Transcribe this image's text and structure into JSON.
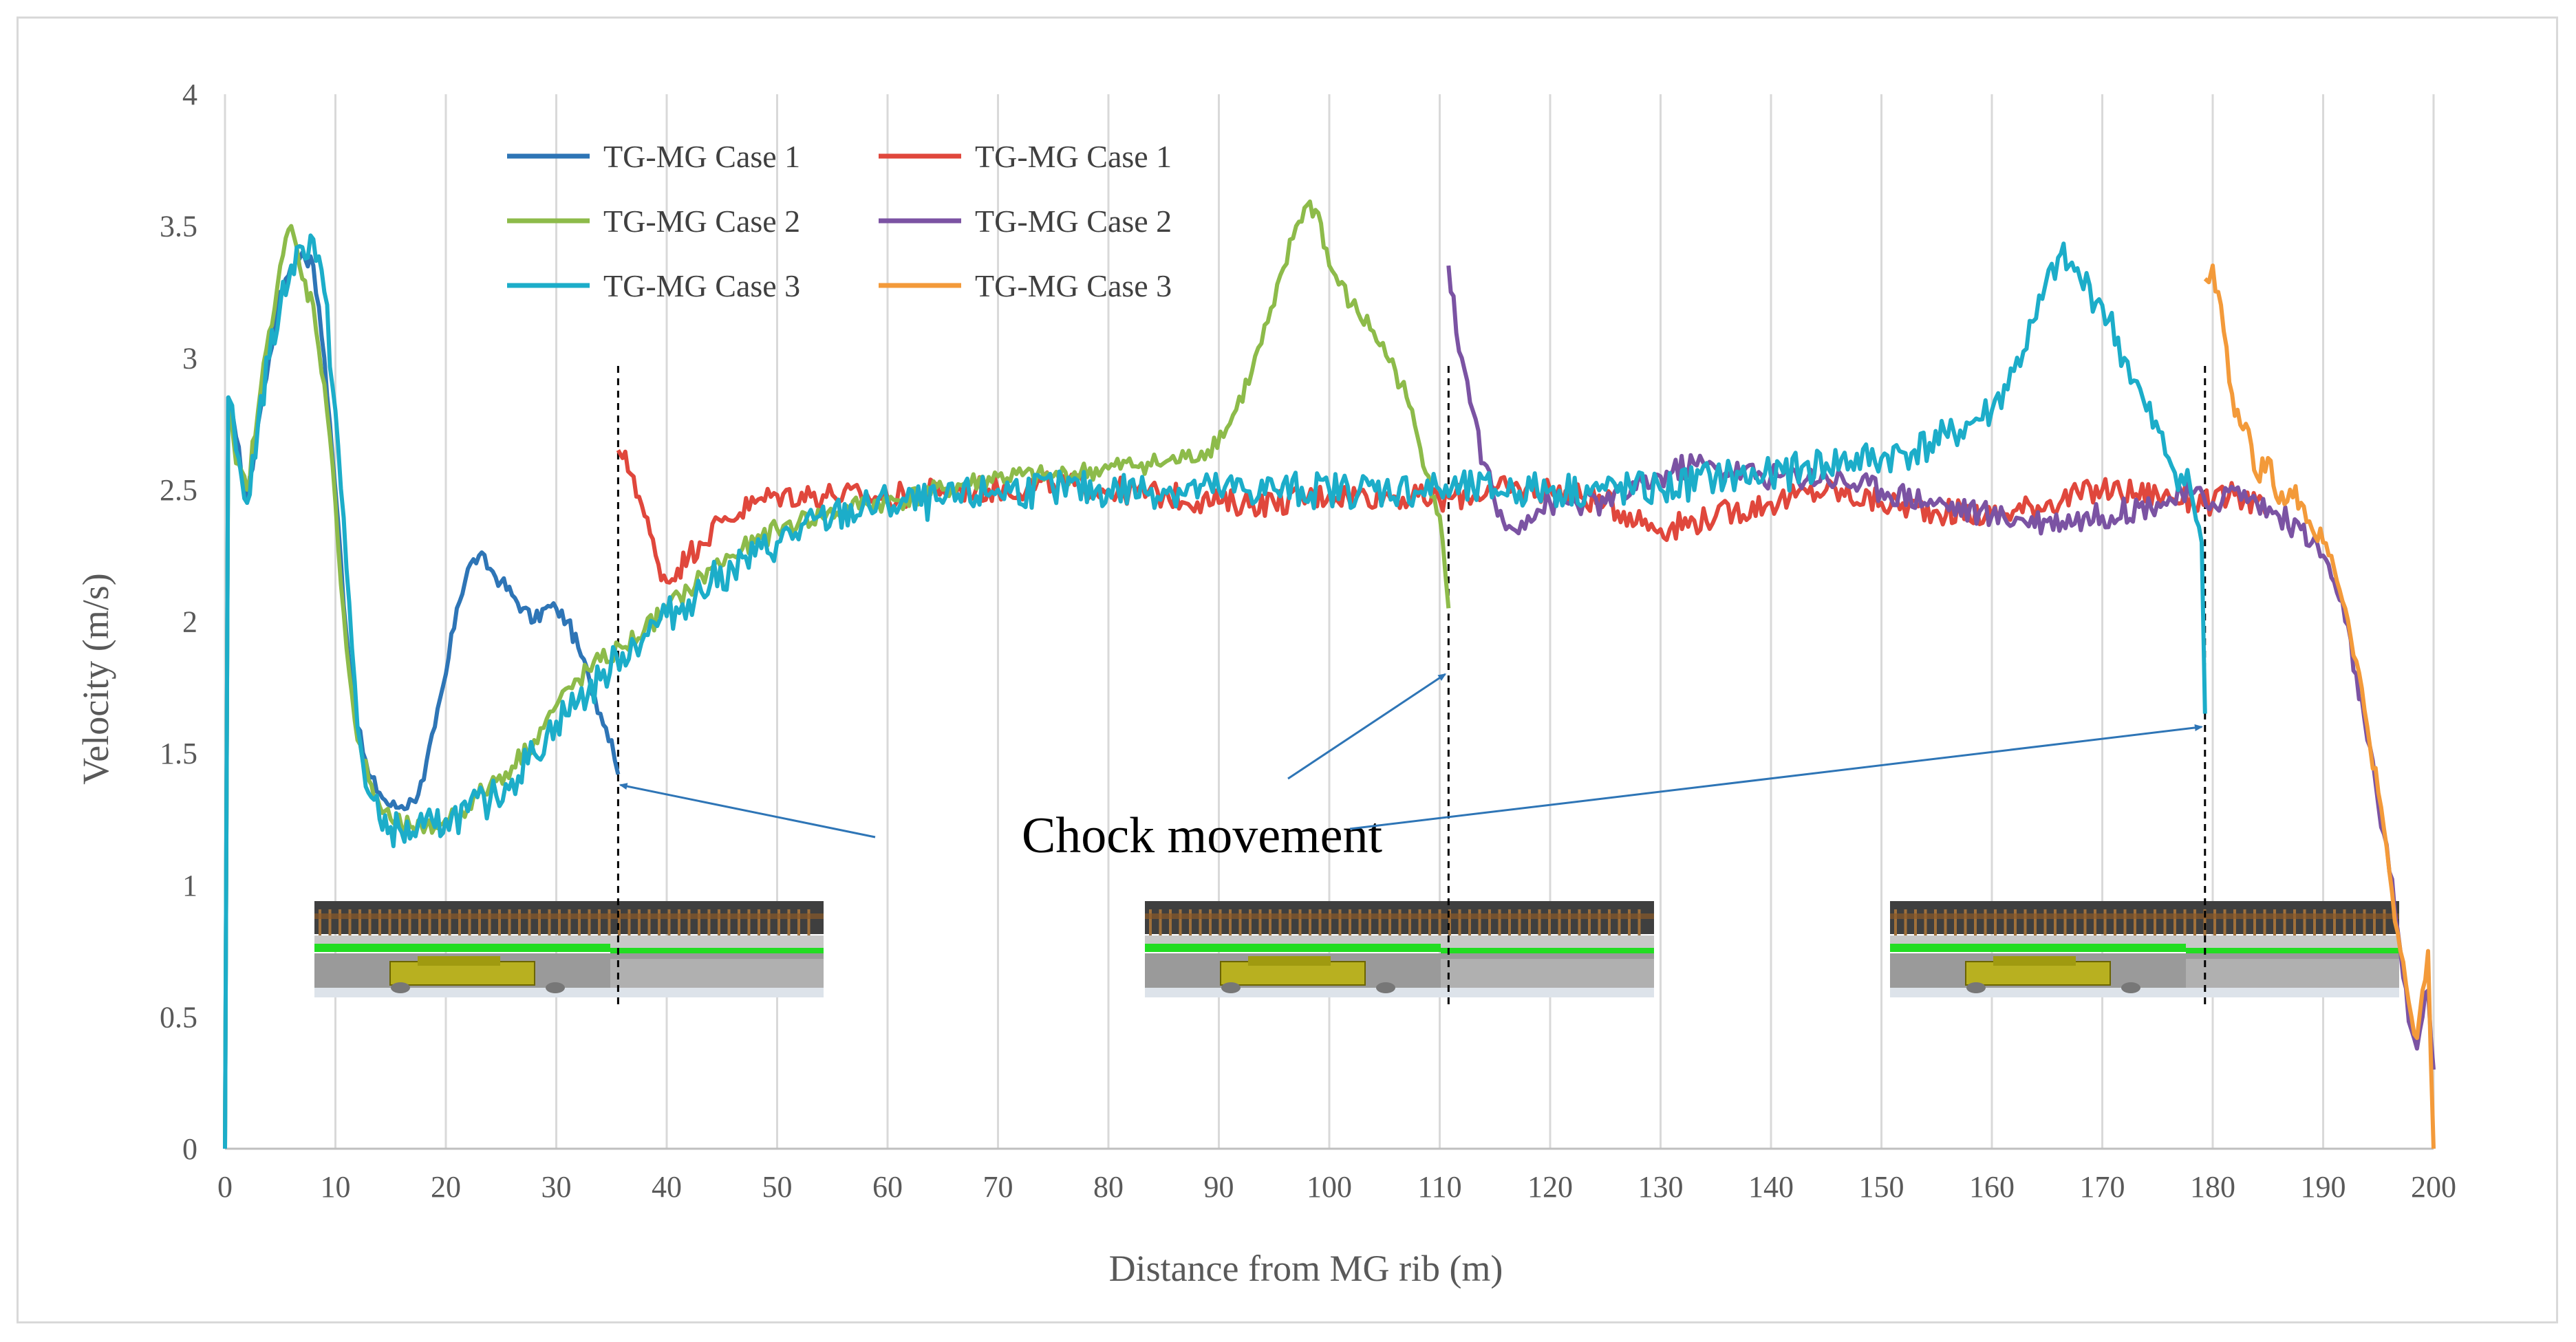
{
  "chart_data": {
    "type": "line",
    "title": "",
    "xlabel": "Distance from MG rib (m)",
    "ylabel": "Velocity (m/s)",
    "xlim": [
      0,
      200
    ],
    "ylim": [
      0,
      4
    ],
    "x_ticks": [
      "0",
      "10",
      "20",
      "30",
      "40",
      "50",
      "60",
      "70",
      "80",
      "90",
      "100",
      "110",
      "120",
      "130",
      "140",
      "150",
      "160",
      "170",
      "180",
      "190",
      "200"
    ],
    "y_ticks": [
      "0",
      "0.5",
      "1",
      "1.5",
      "2",
      "2.5",
      "3",
      "3.5",
      "4"
    ],
    "grid": "vertical",
    "legend_position": "top-left",
    "series": [
      {
        "name": "TG-MG Case 1",
        "color": "#2e75b6",
        "noise": 0.03,
        "points": [
          [
            0,
            0
          ],
          [
            0.3,
            2.85
          ],
          [
            1,
            2.7
          ],
          [
            2,
            2.45
          ],
          [
            3,
            2.75
          ],
          [
            4,
            3.0
          ],
          [
            5,
            3.25
          ],
          [
            6,
            3.35
          ],
          [
            7,
            3.4
          ],
          [
            8,
            3.35
          ],
          [
            9,
            3.0
          ],
          [
            10,
            2.5
          ],
          [
            11,
            1.95
          ],
          [
            12,
            1.6
          ],
          [
            13,
            1.42
          ],
          [
            14,
            1.35
          ],
          [
            15,
            1.3
          ],
          [
            16,
            1.3
          ],
          [
            17,
            1.32
          ],
          [
            18,
            1.4
          ],
          [
            19,
            1.6
          ],
          [
            20,
            1.8
          ],
          [
            21,
            2.05
          ],
          [
            22,
            2.2
          ],
          [
            23,
            2.25
          ],
          [
            24,
            2.2
          ],
          [
            25,
            2.15
          ],
          [
            26,
            2.1
          ],
          [
            27,
            2.05
          ],
          [
            28,
            2.0
          ],
          [
            29,
            2.05
          ],
          [
            30,
            2.05
          ],
          [
            31,
            2.0
          ],
          [
            32,
            1.9
          ],
          [
            33,
            1.78
          ],
          [
            34,
            1.65
          ],
          [
            35,
            1.55
          ],
          [
            35.6,
            1.42
          ]
        ]
      },
      {
        "name": "TG-MG Case 1",
        "color": "#e0473c",
        "noise": 0.05,
        "points": [
          [
            35.6,
            2.65
          ],
          [
            36,
            2.62
          ],
          [
            37,
            2.55
          ],
          [
            38,
            2.4
          ],
          [
            39,
            2.25
          ],
          [
            40,
            2.15
          ],
          [
            41,
            2.2
          ],
          [
            42,
            2.25
          ],
          [
            43,
            2.3
          ],
          [
            45,
            2.38
          ],
          [
            48,
            2.45
          ],
          [
            50,
            2.48
          ],
          [
            55,
            2.48
          ],
          [
            60,
            2.47
          ],
          [
            65,
            2.5
          ],
          [
            70,
            2.5
          ],
          [
            75,
            2.52
          ],
          [
            80,
            2.5
          ],
          [
            85,
            2.48
          ],
          [
            90,
            2.45
          ],
          [
            95,
            2.45
          ],
          [
            100,
            2.48
          ],
          [
            105,
            2.48
          ],
          [
            110,
            2.46
          ],
          [
            115,
            2.5
          ],
          [
            120,
            2.5
          ],
          [
            125,
            2.45
          ],
          [
            130,
            2.35
          ],
          [
            135,
            2.4
          ],
          [
            140,
            2.45
          ],
          [
            145,
            2.5
          ],
          [
            150,
            2.45
          ],
          [
            155,
            2.42
          ],
          [
            160,
            2.4
          ],
          [
            165,
            2.45
          ],
          [
            170,
            2.5
          ],
          [
            175,
            2.48
          ],
          [
            180,
            2.45
          ],
          [
            182,
            2.48
          ],
          [
            184,
            2.45
          ],
          [
            185,
            2.4
          ]
        ]
      },
      {
        "name": "TG-MG Case 2",
        "color": "#8dbb4a",
        "noise": 0.04,
        "points": [
          [
            0,
            0
          ],
          [
            0.3,
            2.8
          ],
          [
            1,
            2.6
          ],
          [
            2,
            2.5
          ],
          [
            3,
            2.8
          ],
          [
            4,
            3.1
          ],
          [
            5,
            3.35
          ],
          [
            6,
            3.5
          ],
          [
            7,
            3.3
          ],
          [
            8,
            3.2
          ],
          [
            9,
            2.9
          ],
          [
            10,
            2.45
          ],
          [
            11,
            1.9
          ],
          [
            12,
            1.55
          ],
          [
            13,
            1.4
          ],
          [
            14,
            1.3
          ],
          [
            15,
            1.25
          ],
          [
            16,
            1.22
          ],
          [
            17,
            1.22
          ],
          [
            18,
            1.2
          ],
          [
            19,
            1.22
          ],
          [
            20,
            1.25
          ],
          [
            22,
            1.3
          ],
          [
            24,
            1.38
          ],
          [
            26,
            1.45
          ],
          [
            28,
            1.55
          ],
          [
            30,
            1.68
          ],
          [
            32,
            1.78
          ],
          [
            34,
            1.85
          ],
          [
            36,
            1.9
          ],
          [
            38,
            1.97
          ],
          [
            40,
            2.05
          ],
          [
            42,
            2.12
          ],
          [
            44,
            2.2
          ],
          [
            46,
            2.25
          ],
          [
            48,
            2.3
          ],
          [
            50,
            2.35
          ],
          [
            52,
            2.38
          ],
          [
            54,
            2.4
          ],
          [
            56,
            2.42
          ],
          [
            58,
            2.45
          ],
          [
            60,
            2.45
          ],
          [
            65,
            2.5
          ],
          [
            70,
            2.55
          ],
          [
            75,
            2.55
          ],
          [
            80,
            2.58
          ],
          [
            83,
            2.6
          ],
          [
            85,
            2.6
          ],
          [
            87,
            2.62
          ],
          [
            89,
            2.65
          ],
          [
            91,
            2.75
          ],
          [
            93,
            2.95
          ],
          [
            95,
            3.2
          ],
          [
            97,
            3.5
          ],
          [
            98,
            3.58
          ],
          [
            99,
            3.55
          ],
          [
            100,
            3.35
          ],
          [
            102,
            3.2
          ],
          [
            104,
            3.1
          ],
          [
            106,
            2.95
          ],
          [
            107,
            2.85
          ],
          [
            108,
            2.7
          ],
          [
            109,
            2.55
          ],
          [
            110,
            2.4
          ],
          [
            110.8,
            2.05
          ]
        ]
      },
      {
        "name": "TG-MG Case 2",
        "color": "#7b53a3",
        "noise": 0.05,
        "points": [
          [
            110.8,
            3.35
          ],
          [
            111,
            3.25
          ],
          [
            112,
            3.0
          ],
          [
            113,
            2.8
          ],
          [
            114,
            2.6
          ],
          [
            115,
            2.45
          ],
          [
            116,
            2.35
          ],
          [
            118,
            2.4
          ],
          [
            120,
            2.45
          ],
          [
            125,
            2.45
          ],
          [
            130,
            2.55
          ],
          [
            133,
            2.6
          ],
          [
            135,
            2.58
          ],
          [
            140,
            2.55
          ],
          [
            145,
            2.55
          ],
          [
            150,
            2.5
          ],
          [
            155,
            2.45
          ],
          [
            160,
            2.4
          ],
          [
            165,
            2.38
          ],
          [
            170,
            2.4
          ],
          [
            175,
            2.45
          ],
          [
            178,
            2.48
          ],
          [
            180,
            2.45
          ],
          [
            182,
            2.5
          ],
          [
            184,
            2.45
          ],
          [
            186,
            2.4
          ],
          [
            188,
            2.35
          ],
          [
            189,
            2.3
          ],
          [
            190,
            2.25
          ],
          [
            191,
            2.15
          ],
          [
            192,
            2.0
          ],
          [
            193,
            1.8
          ],
          [
            194,
            1.55
          ],
          [
            195,
            1.3
          ],
          [
            196,
            1.05
          ],
          [
            197,
            0.75
          ],
          [
            198,
            0.45
          ],
          [
            198.5,
            0.38
          ],
          [
            199,
            0.5
          ],
          [
            199.5,
            0.6
          ],
          [
            200,
            0.3
          ]
        ]
      },
      {
        "name": "TG-MG Case 3",
        "color": "#1cadc9",
        "noise": 0.07,
        "points": [
          [
            0,
            0
          ],
          [
            0.3,
            2.85
          ],
          [
            1,
            2.65
          ],
          [
            2,
            2.45
          ],
          [
            3,
            2.75
          ],
          [
            4,
            3.0
          ],
          [
            5,
            3.2
          ],
          [
            6,
            3.35
          ],
          [
            7,
            3.42
          ],
          [
            8,
            3.45
          ],
          [
            9,
            3.25
          ],
          [
            10,
            2.8
          ],
          [
            11,
            2.2
          ],
          [
            12,
            1.6
          ],
          [
            13,
            1.35
          ],
          [
            14,
            1.25
          ],
          [
            15,
            1.22
          ],
          [
            16,
            1.2
          ],
          [
            17,
            1.2
          ],
          [
            18,
            1.22
          ],
          [
            19,
            1.22
          ],
          [
            20,
            1.25
          ],
          [
            22,
            1.28
          ],
          [
            24,
            1.32
          ],
          [
            26,
            1.4
          ],
          [
            28,
            1.5
          ],
          [
            30,
            1.62
          ],
          [
            32,
            1.7
          ],
          [
            34,
            1.78
          ],
          [
            36,
            1.88
          ],
          [
            38,
            1.95
          ],
          [
            40,
            2.02
          ],
          [
            42,
            2.08
          ],
          [
            44,
            2.15
          ],
          [
            46,
            2.2
          ],
          [
            48,
            2.25
          ],
          [
            50,
            2.3
          ],
          [
            55,
            2.4
          ],
          [
            60,
            2.45
          ],
          [
            65,
            2.45
          ],
          [
            70,
            2.5
          ],
          [
            75,
            2.5
          ],
          [
            80,
            2.5
          ],
          [
            85,
            2.5
          ],
          [
            90,
            2.5
          ],
          [
            95,
            2.5
          ],
          [
            100,
            2.5
          ],
          [
            105,
            2.5
          ],
          [
            110,
            2.5
          ],
          [
            115,
            2.5
          ],
          [
            120,
            2.5
          ],
          [
            125,
            2.5
          ],
          [
            130,
            2.5
          ],
          [
            135,
            2.55
          ],
          [
            140,
            2.55
          ],
          [
            145,
            2.6
          ],
          [
            150,
            2.62
          ],
          [
            153,
            2.65
          ],
          [
            156,
            2.7
          ],
          [
            158,
            2.75
          ],
          [
            160,
            2.8
          ],
          [
            162,
            2.95
          ],
          [
            164,
            3.15
          ],
          [
            166,
            3.38
          ],
          [
            167,
            3.35
          ],
          [
            168,
            3.3
          ],
          [
            170,
            3.2
          ],
          [
            172,
            3.0
          ],
          [
            174,
            2.8
          ],
          [
            176,
            2.62
          ],
          [
            178,
            2.5
          ],
          [
            179,
            2.3
          ],
          [
            179.3,
            1.65
          ]
        ]
      },
      {
        "name": "TG-MG Case 3",
        "color": "#f39a3a",
        "noise": 0.04,
        "points": [
          [
            179.3,
            3.3
          ],
          [
            180,
            3.35
          ],
          [
            181,
            3.1
          ],
          [
            182,
            2.78
          ],
          [
            183,
            2.75
          ],
          [
            184,
            2.55
          ],
          [
            185,
            2.62
          ],
          [
            186,
            2.45
          ],
          [
            187,
            2.5
          ],
          [
            188,
            2.45
          ],
          [
            189,
            2.35
          ],
          [
            190,
            2.3
          ],
          [
            191,
            2.2
          ],
          [
            192,
            2.05
          ],
          [
            193,
            1.85
          ],
          [
            194,
            1.6
          ],
          [
            195,
            1.35
          ],
          [
            196,
            1.05
          ],
          [
            197,
            0.75
          ],
          [
            198,
            0.5
          ],
          [
            198.5,
            0.42
          ],
          [
            199,
            0.6
          ],
          [
            199.5,
            0.75
          ],
          [
            200,
            0.0
          ]
        ]
      }
    ],
    "annotations": [
      {
        "text": "Chock movement",
        "x": 64,
        "y": 1.22
      },
      {
        "text": "",
        "x": 35.8,
        "y": 1.38
      },
      {
        "text": "",
        "x": 110.5,
        "y": 1.8
      },
      {
        "text": "",
        "x": 179.0,
        "y": 1.6
      }
    ],
    "vlines_x": [
      35.6,
      110.8,
      179.3
    ]
  }
}
